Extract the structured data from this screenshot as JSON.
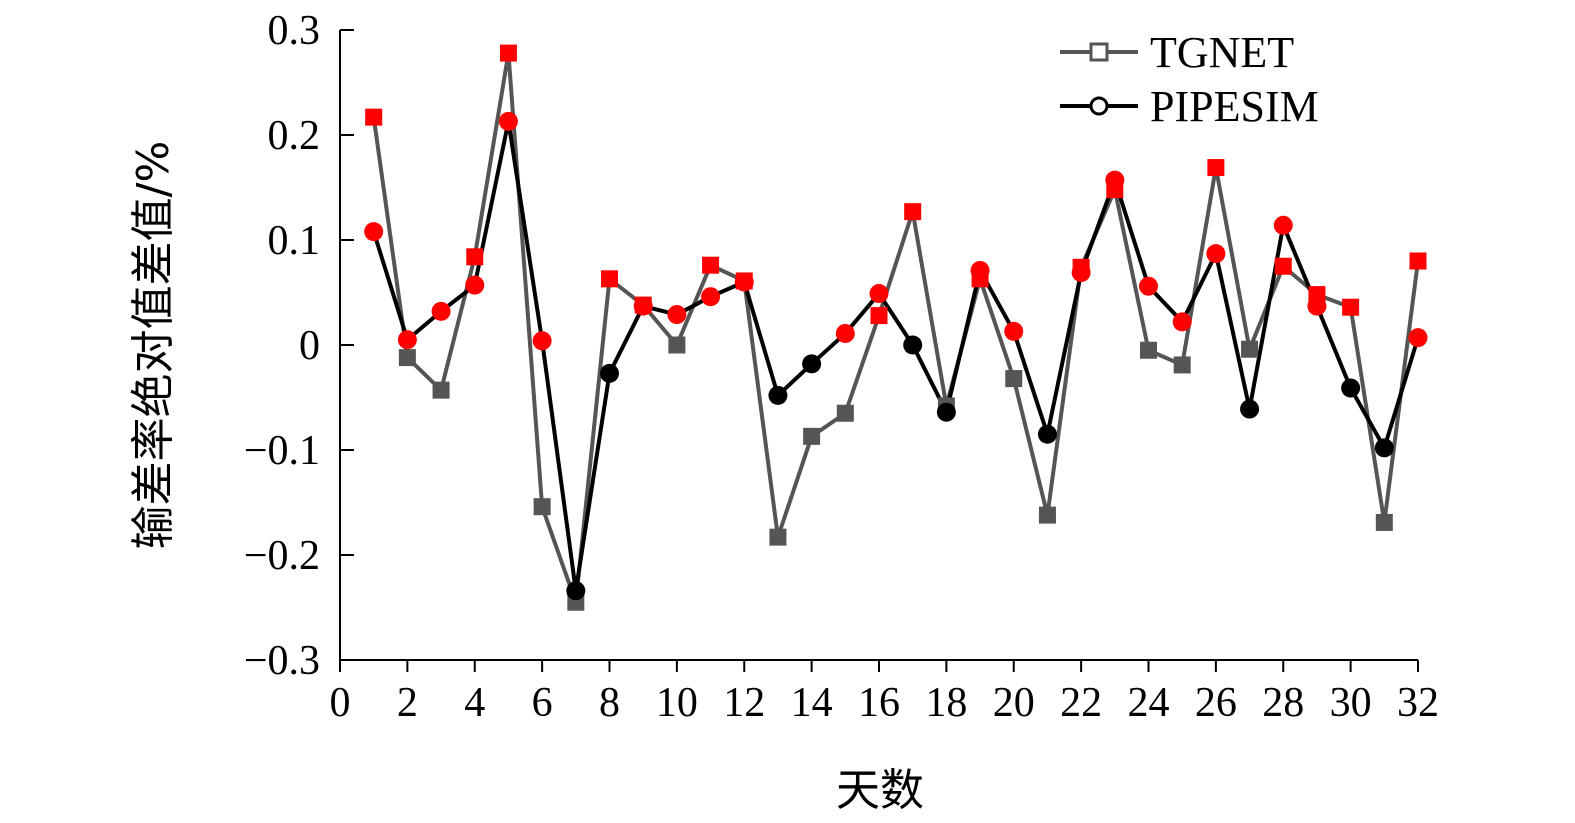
{
  "chart_data": {
    "type": "line",
    "xlabel": "天数",
    "ylabel": "输差率绝对值差值/%",
    "xlim": [
      0,
      32
    ],
    "ylim": [
      -0.3,
      0.3
    ],
    "xticks": [
      "0",
      "2",
      "4",
      "6",
      "8",
      "10",
      "12",
      "14",
      "16",
      "18",
      "20",
      "22",
      "24",
      "26",
      "28",
      "30",
      "32"
    ],
    "yticks": [
      "0.3",
      "0.2",
      "0.1",
      "0",
      "−0.1",
      "−0.2",
      "−0.3"
    ],
    "ytick_values": [
      0.3,
      0.2,
      0.1,
      0,
      -0.1,
      -0.2,
      -0.3
    ],
    "grid": false,
    "legend_position": "top-right",
    "highlight_color": "#ff0000",
    "x": [
      1,
      2,
      3,
      4,
      5,
      6,
      7,
      8,
      9,
      10,
      11,
      12,
      13,
      14,
      15,
      16,
      17,
      18,
      19,
      20,
      21,
      22,
      23,
      24,
      25,
      26,
      27,
      28,
      29,
      30,
      31,
      32
    ],
    "series": [
      {
        "name": "TGNET",
        "marker": "square",
        "line_color": "#555555",
        "values": [
          0.217,
          -0.012,
          -0.043,
          0.084,
          0.278,
          -0.154,
          -0.245,
          0.063,
          0.038,
          0.0,
          0.076,
          0.061,
          -0.183,
          -0.087,
          -0.065,
          0.028,
          0.127,
          -0.058,
          0.063,
          -0.032,
          -0.162,
          0.074,
          0.148,
          -0.005,
          -0.019,
          0.169,
          -0.004,
          0.075,
          0.048,
          0.036,
          -0.169,
          0.08
        ],
        "highlighted": [
          true,
          false,
          false,
          true,
          true,
          false,
          false,
          true,
          true,
          false,
          true,
          true,
          false,
          false,
          false,
          true,
          true,
          false,
          true,
          false,
          false,
          true,
          true,
          false,
          false,
          true,
          false,
          true,
          true,
          true,
          false,
          true
        ]
      },
      {
        "name": "PIPESIM",
        "marker": "circle",
        "line_color": "#000000",
        "values": [
          0.108,
          0.005,
          0.032,
          0.057,
          0.213,
          0.004,
          -0.234,
          -0.027,
          0.037,
          0.029,
          0.046,
          0.06,
          -0.048,
          -0.018,
          0.011,
          0.049,
          0.0,
          -0.064,
          0.071,
          0.013,
          -0.085,
          0.069,
          0.157,
          0.056,
          0.022,
          0.087,
          -0.061,
          0.114,
          0.037,
          -0.041,
          -0.098,
          0.007
        ],
        "highlighted": [
          true,
          true,
          true,
          true,
          true,
          true,
          false,
          false,
          true,
          true,
          true,
          true,
          false,
          false,
          true,
          true,
          false,
          false,
          true,
          true,
          false,
          true,
          true,
          true,
          true,
          true,
          false,
          true,
          true,
          false,
          false,
          true
        ]
      }
    ]
  }
}
